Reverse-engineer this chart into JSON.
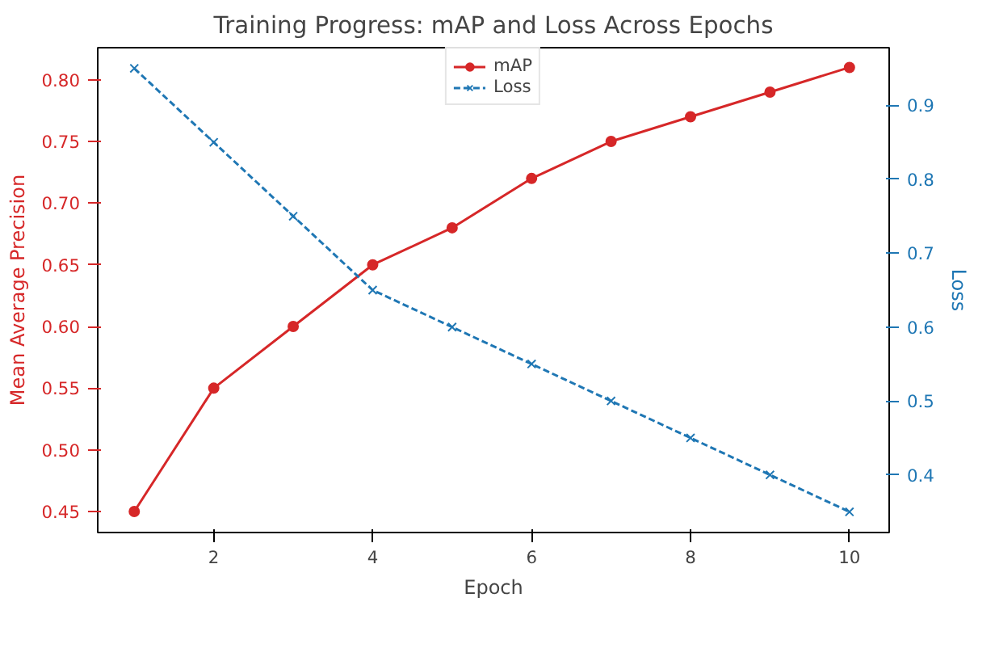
{
  "chart_data": {
    "type": "line",
    "title": "Training Progress: mAP and Loss Across Epochs",
    "xlabel": "Epoch",
    "ylabel": "Mean Average Precision",
    "y2label": "Loss",
    "x": [
      1,
      2,
      3,
      4,
      5,
      6,
      7,
      8,
      9,
      10
    ],
    "series": [
      {
        "name": "mAP",
        "color": "#d62728",
        "marker": "circle",
        "line_style": "solid",
        "values": [
          0.45,
          0.55,
          0.6,
          0.65,
          0.68,
          0.72,
          0.75,
          0.77,
          0.79,
          0.81
        ]
      },
      {
        "name": "Loss",
        "color": "#1f77b4",
        "marker": "cross",
        "line_style": "dashed",
        "axis": "y2",
        "values": [
          0.95,
          0.85,
          0.75,
          0.65,
          0.6,
          0.55,
          0.5,
          0.45,
          0.4,
          0.35
        ]
      }
    ],
    "xlim": [
      0.54,
      10.5
    ],
    "xticks": [
      2,
      4,
      6,
      8,
      10
    ],
    "ylim": [
      0.433,
      0.826
    ],
    "yticks": [
      0.45,
      {
        "value": 0.5,
        "label": "0.50"
      },
      0.55,
      {
        "value": 0.6,
        "label": "0.60"
      },
      0.65,
      {
        "value": 0.7,
        "label": "0.70"
      },
      0.75,
      {
        "value": 0.8,
        "label": "0.80"
      }
    ],
    "y2lim": [
      0.322,
      0.978
    ],
    "y2ticks": [
      0.4,
      0.5,
      0.6,
      0.7,
      0.8,
      0.9
    ],
    "grid": false,
    "legend": "top"
  }
}
